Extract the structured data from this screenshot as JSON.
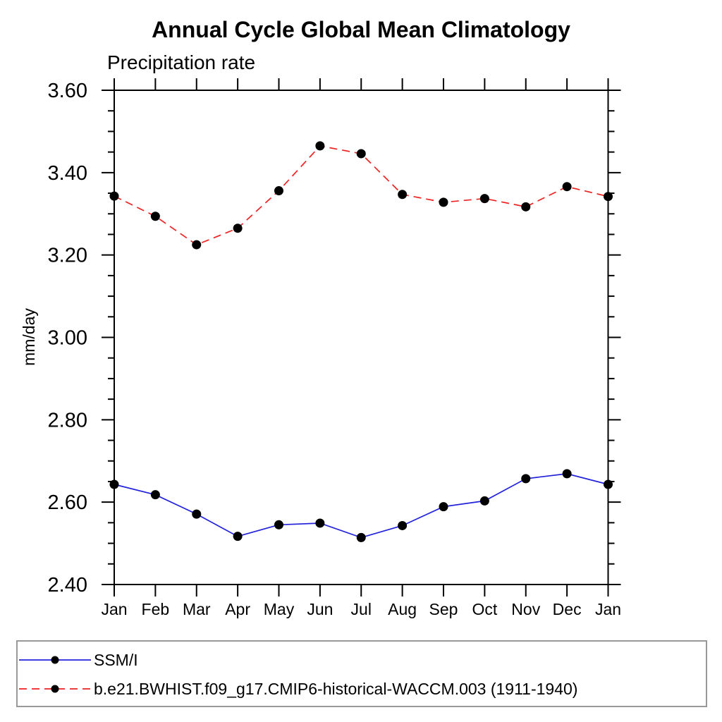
{
  "title": "Annual Cycle Global Mean Climatology",
  "subtitle": "Precipitation rate",
  "ylabel": "mm/day",
  "chart_data": {
    "type": "line",
    "categories": [
      "Jan",
      "Feb",
      "Mar",
      "Apr",
      "May",
      "Jun",
      "Jul",
      "Aug",
      "Sep",
      "Oct",
      "Nov",
      "Dec",
      "Jan"
    ],
    "series": [
      {
        "name": "SSM/I",
        "line_color": "#2222dd",
        "line_style": "solid",
        "marker": "filled-circle",
        "marker_color": "#000000",
        "values": [
          2.643,
          2.618,
          2.571,
          2.517,
          2.545,
          2.549,
          2.514,
          2.543,
          2.589,
          2.603,
          2.657,
          2.669,
          2.643
        ]
      },
      {
        "name": "b.e21.BWHIST.f09_g17.CMIP6-historical-WACCM.003 (1911-1940)",
        "line_color": "#ee2222",
        "line_style": "dashed",
        "marker": "filled-circle",
        "marker_color": "#000000",
        "values": [
          3.343,
          3.294,
          3.225,
          3.265,
          3.356,
          3.465,
          3.446,
          3.347,
          3.328,
          3.337,
          3.317,
          3.366,
          3.342
        ]
      }
    ],
    "ylim": [
      2.4,
      3.6
    ],
    "ytick_labels": [
      "2.40",
      "2.60",
      "2.80",
      "3.00",
      "3.20",
      "3.40",
      "3.60"
    ],
    "ytick_step": 0.2,
    "yminor_step": 0.05,
    "grid": false,
    "legend_position": "bottom"
  }
}
